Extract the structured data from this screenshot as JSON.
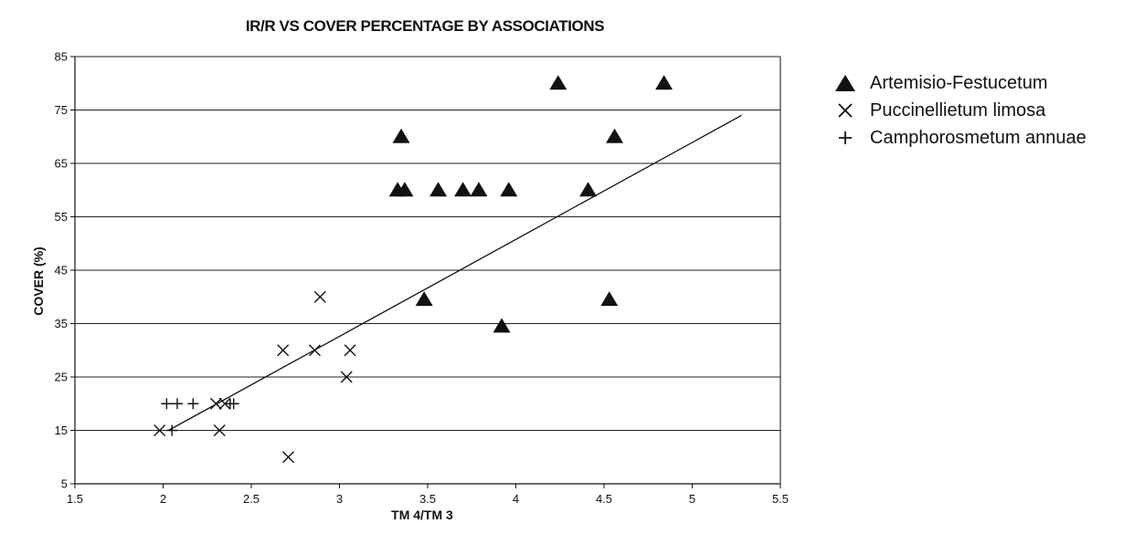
{
  "chart_data": {
    "type": "scatter",
    "title": "IR/R VS COVER PERCENTAGE BY ASSOCIATIONS",
    "xlabel": "TM 4/TM 3",
    "ylabel": "COVER (%)",
    "xlim": [
      1.5,
      5.5
    ],
    "ylim": [
      5,
      85
    ],
    "x_ticks": [
      1.5,
      2,
      2.5,
      3,
      3.5,
      4,
      4.5,
      5,
      5.5
    ],
    "x_tick_labels": [
      "1.5",
      "2",
      "2.5",
      "3",
      "3.5",
      "4",
      "4.5",
      "5",
      "5.5"
    ],
    "y_ticks": [
      5,
      15,
      25,
      35,
      45,
      55,
      65,
      75,
      85
    ],
    "y_tick_labels": [
      "5",
      "15",
      "25",
      "35",
      "45",
      "55",
      "65",
      "75",
      "85"
    ],
    "grid": "horizontal",
    "legend_position": "right",
    "series": [
      {
        "name": "Artemisio-Festucetum",
        "marker": "triangle",
        "points": [
          [
            3.33,
            60
          ],
          [
            3.35,
            70
          ],
          [
            3.37,
            60
          ],
          [
            3.48,
            39.5
          ],
          [
            3.56,
            60
          ],
          [
            3.7,
            60
          ],
          [
            3.79,
            60
          ],
          [
            3.92,
            34.5
          ],
          [
            3.96,
            60
          ],
          [
            4.24,
            80
          ],
          [
            4.41,
            60
          ],
          [
            4.53,
            39.5
          ],
          [
            4.56,
            70
          ],
          [
            4.84,
            80
          ]
        ]
      },
      {
        "name": "Puccinellietum limosa",
        "marker": "x",
        "points": [
          [
            1.98,
            15
          ],
          [
            2.3,
            20
          ],
          [
            2.32,
            15
          ],
          [
            2.35,
            20
          ],
          [
            2.68,
            30
          ],
          [
            2.71,
            10
          ],
          [
            2.86,
            30
          ],
          [
            2.89,
            40
          ],
          [
            3.04,
            25
          ],
          [
            3.06,
            30
          ]
        ]
      },
      {
        "name": "Camphorosmetum annuae",
        "marker": "plus",
        "points": [
          [
            2.02,
            20
          ],
          [
            2.05,
            15
          ],
          [
            2.08,
            20
          ],
          [
            2.17,
            20
          ],
          [
            2.38,
            20
          ],
          [
            2.4,
            20
          ]
        ]
      }
    ],
    "trendline": {
      "x": [
        2.03,
        5.28
      ],
      "y": [
        15,
        74
      ]
    }
  },
  "colors": {
    "ink": "#111111",
    "grid": "#222222"
  }
}
